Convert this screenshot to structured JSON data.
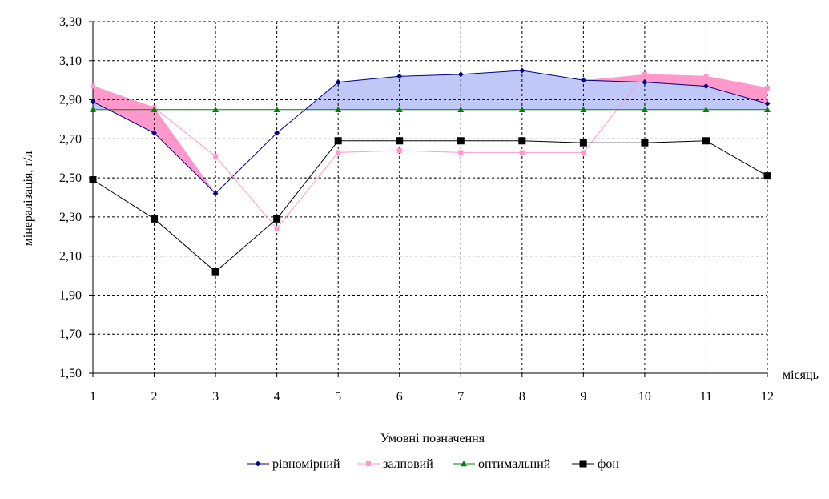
{
  "chart_data": {
    "type": "line",
    "title": "",
    "xlabel": "місяць",
    "ylabel": "мінералізація, г/л",
    "legend_title": "Умовні позначення",
    "x": [
      1,
      2,
      3,
      4,
      5,
      6,
      7,
      8,
      9,
      10,
      11,
      12
    ],
    "x_tick_labels": [
      "1",
      "2",
      "3",
      "4",
      "5",
      "6",
      "7",
      "8",
      "9",
      "10",
      "11",
      "12"
    ],
    "y_tick_labels": [
      "1,50",
      "1,70",
      "1,90",
      "2,10",
      "2,30",
      "2,50",
      "2,70",
      "2,90",
      "3,10",
      "3,30"
    ],
    "ylim": [
      1.5,
      3.3
    ],
    "grid": true,
    "legend_position": "bottom",
    "series": [
      {
        "name": "рівномірний",
        "color": "#000080",
        "marker": "diamond",
        "values": [
          2.89,
          2.73,
          2.42,
          2.73,
          2.99,
          3.02,
          3.03,
          3.05,
          3.0,
          2.99,
          2.97,
          2.88
        ]
      },
      {
        "name": "залповий",
        "color": "#FF99CC",
        "marker": "square",
        "values": [
          2.97,
          2.86,
          2.61,
          2.24,
          2.63,
          2.64,
          2.63,
          2.63,
          2.63,
          3.03,
          3.02,
          2.96
        ]
      },
      {
        "name": "оптимальний",
        "color": "#008000",
        "marker": "triangle",
        "values": [
          2.85,
          2.85,
          2.85,
          2.85,
          2.85,
          2.85,
          2.85,
          2.85,
          2.85,
          2.85,
          2.85,
          2.85
        ]
      },
      {
        "name": "фон",
        "color": "#000000",
        "marker": "square",
        "values": [
          2.49,
          2.29,
          2.02,
          2.29,
          2.69,
          2.69,
          2.69,
          2.69,
          2.68,
          2.68,
          2.69,
          2.51
        ]
      }
    ],
    "fill_colors": {
      "above_optimal": "#C0C8F8",
      "excess_pink": "#FF99CC"
    }
  }
}
